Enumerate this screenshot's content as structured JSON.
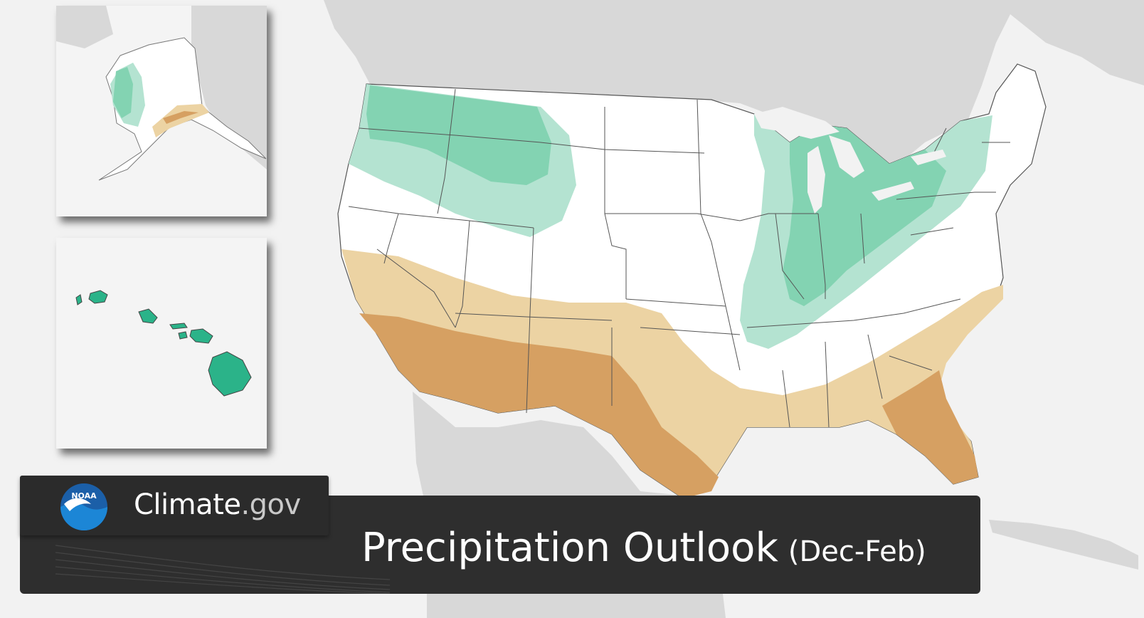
{
  "brand": {
    "logo_text": "NOAA",
    "name": "Climate",
    "suffix": ".gov"
  },
  "title": {
    "main": "Precipitation Outlook",
    "period": "(Dec-Feb)"
  },
  "legend_colors": {
    "wet_light": "#b4e3d1",
    "wet_medium": "#83d3b2",
    "wet_strong": "#2bb389",
    "dry_light": "#ecd3a3",
    "dry_medium": "#d6a062",
    "land_gray": "#d8d8d8",
    "water": "#f2f2f2"
  },
  "map": {
    "regions": [
      "Contiguous United States",
      "Alaska inset",
      "Hawaii inset"
    ]
  }
}
